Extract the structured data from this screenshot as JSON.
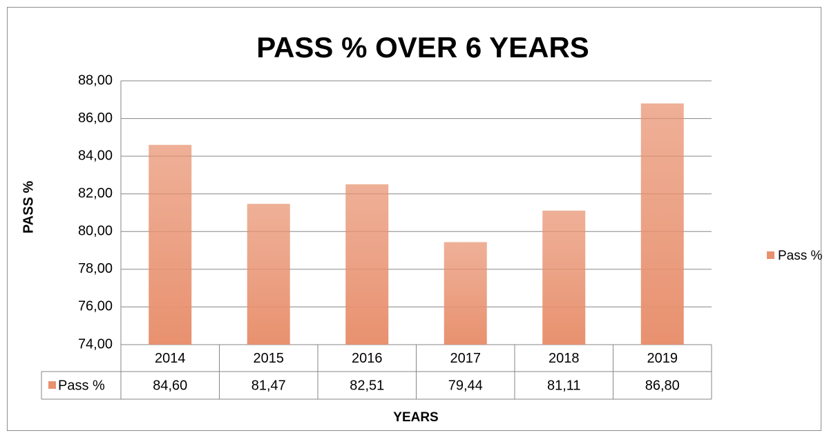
{
  "chart_data": {
    "type": "bar",
    "title": "PASS % OVER 6 YEARS",
    "ylabel": "PASS %",
    "xlabel": "YEARS",
    "categories": [
      "2014",
      "2015",
      "2016",
      "2017",
      "2018",
      "2019"
    ],
    "series": [
      {
        "name": "Pass %",
        "color": "#e8916f",
        "values": [
          84.6,
          81.47,
          82.51,
          79.44,
          81.11,
          86.8
        ],
        "value_labels": [
          "84,60",
          "81,47",
          "82,51",
          "79,44",
          "81,11",
          "86,80"
        ]
      }
    ],
    "ylim": [
      74,
      88
    ],
    "yticks": [
      {
        "value": 74,
        "label": "74,00"
      },
      {
        "value": 76,
        "label": "76,00"
      },
      {
        "value": 78,
        "label": "78,00"
      },
      {
        "value": 80,
        "label": "80,00"
      },
      {
        "value": 82,
        "label": "82,00"
      },
      {
        "value": 84,
        "label": "84,00"
      },
      {
        "value": 86,
        "label": "86,00"
      },
      {
        "value": 88,
        "label": "88,00"
      }
    ],
    "grid": true,
    "legend": "right"
  }
}
